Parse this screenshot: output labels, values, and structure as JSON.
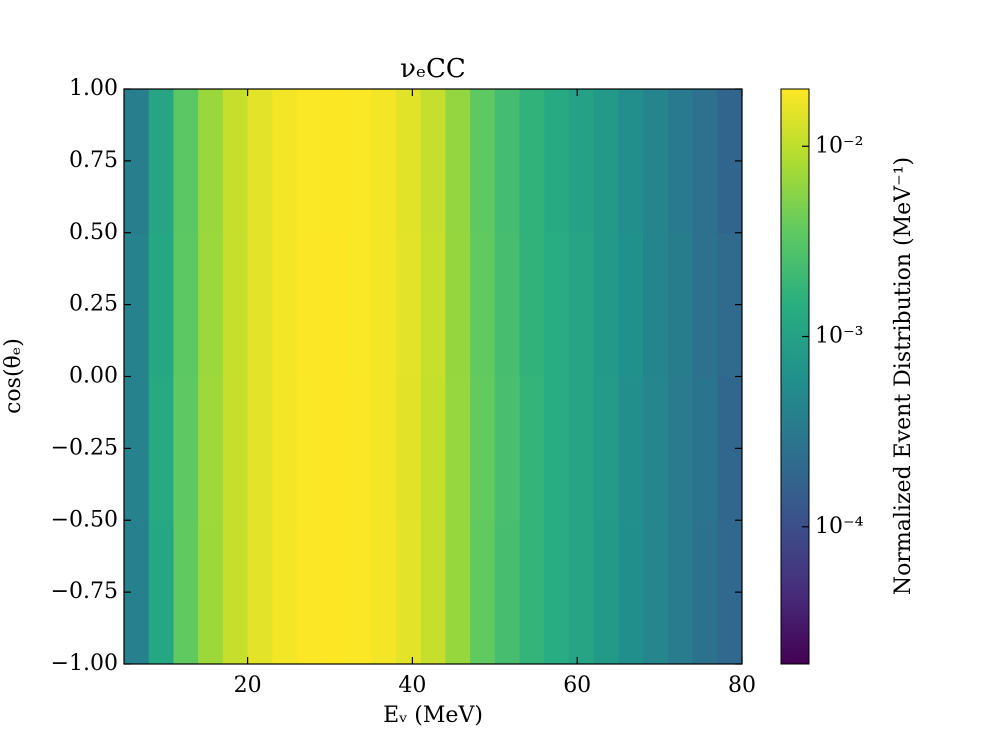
{
  "chart_data": {
    "type": "heatmap",
    "title": "νₑCC",
    "x_label": "Eᵥ (MeV)",
    "y_label": "cos(θₑ)",
    "colorbar_label": "Normalized Event Distribution (MeV⁻¹)",
    "x_bins": [
      5,
      8,
      11,
      14,
      17,
      20,
      23,
      26,
      29,
      32,
      35,
      38,
      41,
      44,
      47,
      50,
      53,
      56,
      59,
      62,
      65,
      68,
      71,
      74,
      77,
      80
    ],
    "y_bins": [
      -1,
      -0.5,
      0,
      0.5,
      1
    ],
    "z": [
      [
        0.00038,
        0.0012,
        0.0036,
        0.007,
        0.011,
        0.015,
        0.018,
        0.0196,
        0.02,
        0.0195,
        0.0181,
        0.0151,
        0.011,
        0.0066,
        0.0036,
        0.0024,
        0.0018,
        0.0014,
        0.0011,
        0.0008,
        0.0006,
        0.00045,
        0.00034,
        0.00026,
        0.0002
      ],
      [
        0.00041,
        0.0013,
        0.0035,
        0.0071,
        0.011,
        0.015,
        0.018,
        0.0194,
        0.0199,
        0.0196,
        0.018,
        0.0149,
        0.0109,
        0.0065,
        0.0037,
        0.0025,
        0.0018,
        0.0014,
        0.0011,
        0.00082,
        0.00059,
        0.00046,
        0.00033,
        0.00027,
        0.00019
      ],
      [
        0.0004,
        0.0012,
        0.0034,
        0.0069,
        0.011,
        0.015,
        0.018,
        0.0195,
        0.02,
        0.0194,
        0.0179,
        0.015,
        0.0111,
        0.0064,
        0.0036,
        0.0024,
        0.0017,
        0.0014,
        0.0011,
        0.00079,
        0.00061,
        0.00044,
        0.00035,
        0.00025,
        0.00021
      ],
      [
        0.00036,
        0.0011,
        0.0033,
        0.0068,
        0.011,
        0.015,
        0.018,
        0.0193,
        0.0198,
        0.0193,
        0.0178,
        0.0148,
        0.0108,
        0.0063,
        0.0035,
        0.0023,
        0.0017,
        0.0013,
        0.001,
        0.00078,
        0.00058,
        0.00043,
        0.00032,
        0.00025,
        0.00018
      ]
    ],
    "xlim": [
      5,
      80
    ],
    "xticks": [
      20,
      40,
      60,
      80
    ],
    "ylim": [
      -1,
      1
    ],
    "yticks": [
      {
        "value": -1,
        "label": "−1.00"
      },
      {
        "value": -0.75,
        "label": "−0.75"
      },
      {
        "value": -0.5,
        "label": "−0.50"
      },
      {
        "value": -0.25,
        "label": "−0.25"
      },
      {
        "value": 0,
        "label": "0.00"
      },
      {
        "value": 0.25,
        "label": "0.25"
      },
      {
        "value": 0.5,
        "label": "0.50"
      },
      {
        "value": 0.75,
        "label": "0.75"
      },
      {
        "value": 1,
        "label": "1.00"
      }
    ],
    "clim": [
      1.9e-05,
      0.02
    ],
    "color_scale": "log",
    "colormap": "viridis",
    "cticks": [
      {
        "value": 0.0001,
        "label": "10⁻⁴"
      },
      {
        "value": 0.001,
        "label": "10⁻³"
      },
      {
        "value": 0.01,
        "label": "10⁻²"
      }
    ]
  }
}
